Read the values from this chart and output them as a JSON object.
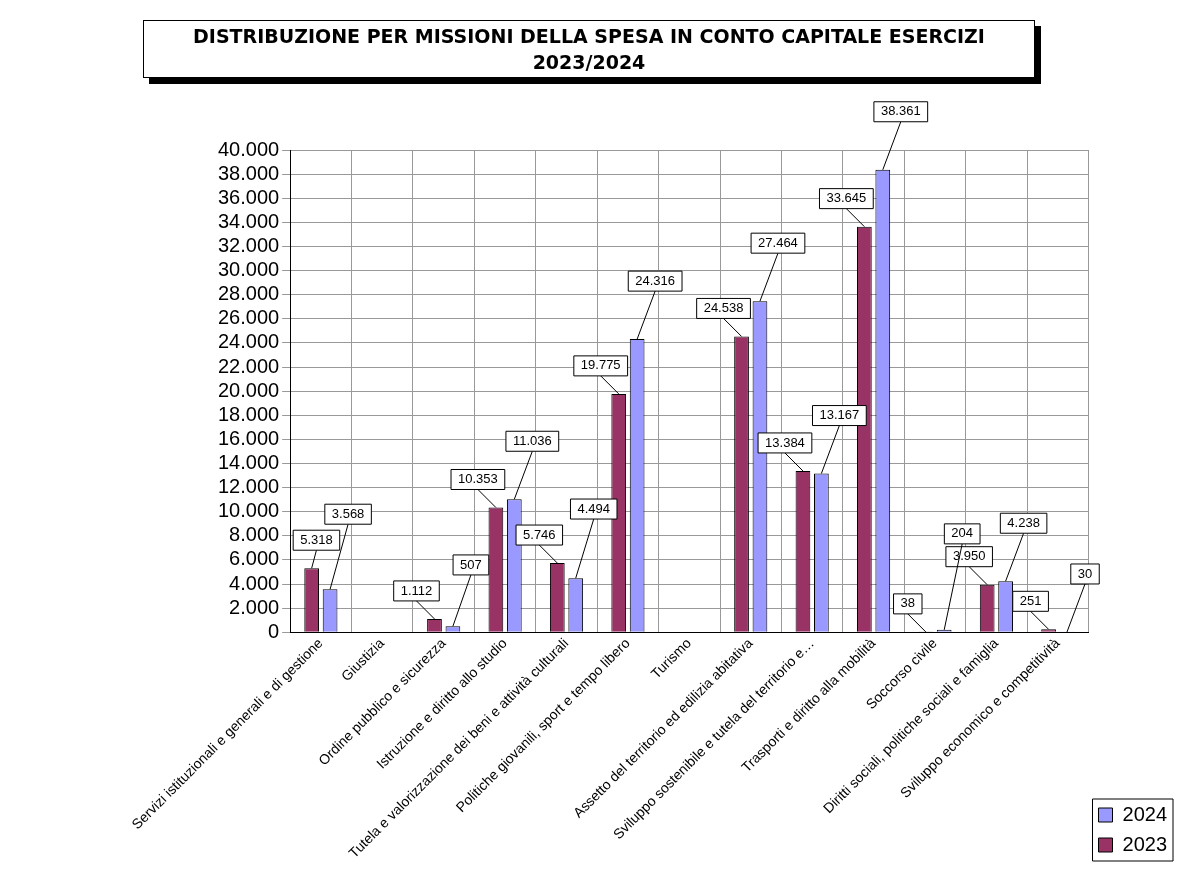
{
  "chart_data": {
    "type": "bar",
    "title": "DISTRIBUZIONE PER MISSIONI DELLA SPESA IN CONTO CAPITALE ESERCIZI 2023/2024",
    "categories": [
      "Servizi istituzionali e generali e di gestione",
      "Giustizia",
      "Ordine pubblico e sicurezza",
      "Istruzione e diritto allo studio",
      "Tutela e valorizzazione dei beni e attività culturali",
      "Politiche giovanili, sport e tempo libero",
      "Turismo",
      "Assetto del territorio ed edilizia abitativa",
      "Sviluppo sostenibile e tutela del territorio e…",
      "Trasporti e diritto alla mobilità",
      "Soccorso civile",
      "Diritti sociali, politiche sociali e famiglia",
      "Sviluppo economico e competitività"
    ],
    "series": [
      {
        "name": "2023",
        "color": "#993366",
        "values": [
          5318,
          null,
          1112,
          10353,
          5746,
          19775,
          null,
          24538,
          13384,
          33645,
          38,
          3950,
          251
        ],
        "value_labels": [
          "5.318",
          null,
          "1.112",
          "10.353",
          "5.746",
          "19.775",
          null,
          "24.538",
          "13.384",
          "33.645",
          "38",
          "3.950",
          "251"
        ]
      },
      {
        "name": "2024",
        "color": "#9999ff",
        "values": [
          3568,
          null,
          507,
          11036,
          4494,
          24316,
          null,
          27464,
          13167,
          38361,
          204,
          4238,
          30
        ],
        "value_labels": [
          "3.568",
          null,
          "507",
          "11.036",
          "4.494",
          "24.316",
          null,
          "27.464",
          "13.167",
          "38.361",
          "204",
          "4.238",
          "30"
        ]
      }
    ],
    "ylim": [
      0,
      40000
    ],
    "yticks": [
      {
        "value": 0,
        "label": "0"
      },
      {
        "value": 2000,
        "label": "2.000"
      },
      {
        "value": 4000,
        "label": "4.000"
      },
      {
        "value": 6000,
        "label": "6.000"
      },
      {
        "value": 8000,
        "label": "8.000"
      },
      {
        "value": 10000,
        "label": "10.000"
      },
      {
        "value": 12000,
        "label": "12.000"
      },
      {
        "value": 14000,
        "label": "14.000"
      },
      {
        "value": 16000,
        "label": "16.000"
      },
      {
        "value": 18000,
        "label": "18.000"
      },
      {
        "value": 20000,
        "label": "20.000"
      },
      {
        "value": 22000,
        "label": "22.000"
      },
      {
        "value": 24000,
        "label": "24.000"
      },
      {
        "value": 26000,
        "label": "26.000"
      },
      {
        "value": 28000,
        "label": "28.000"
      },
      {
        "value": 30000,
        "label": "30.000"
      },
      {
        "value": 32000,
        "label": "32.000"
      },
      {
        "value": 34000,
        "label": "34.000"
      },
      {
        "value": 36000,
        "label": "36.000"
      },
      {
        "value": 38000,
        "label": "38.000"
      },
      {
        "value": 40000,
        "label": "40.000"
      }
    ],
    "grid": true,
    "legend": "bottom right"
  }
}
